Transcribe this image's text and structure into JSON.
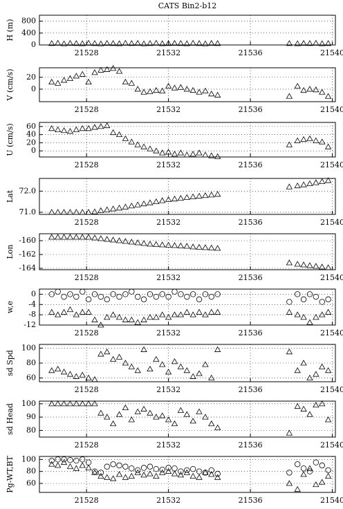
{
  "chart_data": [
    {
      "type": "scatter",
      "title": "CATS Bin2-b12",
      "ylabel": "H (m)",
      "xlim": [
        21525.7,
        21540.15
      ],
      "xticks": [
        21528,
        21532,
        21536,
        21540
      ],
      "ylim": [
        0,
        1000
      ],
      "yticks": [
        0,
        400,
        800
      ],
      "grid": true,
      "x": [
        21526.3,
        21526.6,
        21526.9,
        21527.2,
        21527.5,
        21527.8,
        21528.1,
        21528.4,
        21528.7,
        21529.0,
        21529.3,
        21529.6,
        21529.9,
        21530.2,
        21530.5,
        21530.8,
        21531.1,
        21531.4,
        21531.7,
        21532.0,
        21532.3,
        21532.6,
        21532.9,
        21533.2,
        21533.5,
        21533.8,
        21534.1,
        21534.4,
        21537.9,
        21538.3,
        21538.6,
        21538.9,
        21539.2,
        21539.5,
        21539.8
      ],
      "series": [
        {
          "marker": "triangle",
          "color": "#000000",
          "values": [
            50,
            60,
            40,
            55,
            50,
            45,
            60,
            50,
            40,
            55,
            50,
            45,
            60,
            50,
            55,
            40,
            50,
            60,
            45,
            50,
            55,
            50,
            45,
            60,
            50,
            40,
            55,
            50,
            50,
            45,
            55,
            50,
            60,
            45,
            50
          ]
        }
      ]
    },
    {
      "type": "scatter",
      "ylabel": "V (cm/s)",
      "xlim": [
        21525.7,
        21540.15
      ],
      "xticks": [
        21528,
        21532,
        21536,
        21540
      ],
      "ylim": [
        -21,
        36
      ],
      "yticks": [
        0,
        20
      ],
      "grid": true,
      "x": [
        21526.3,
        21526.6,
        21526.9,
        21527.2,
        21527.5,
        21527.8,
        21528.1,
        21528.4,
        21528.7,
        21529.0,
        21529.3,
        21529.6,
        21529.9,
        21530.2,
        21530.5,
        21530.8,
        21531.1,
        21531.4,
        21531.7,
        21532.0,
        21532.3,
        21532.6,
        21532.9,
        21533.2,
        21533.5,
        21533.8,
        21534.1,
        21534.4,
        21537.9,
        21538.3,
        21538.6,
        21538.9,
        21539.2,
        21539.5,
        21539.8
      ],
      "series": [
        {
          "marker": "triangle",
          "color": "#000000",
          "values": [
            12,
            10,
            15,
            18,
            22,
            25,
            12,
            28,
            32,
            33,
            35,
            30,
            12,
            10,
            0,
            -5,
            -4,
            -2,
            -3,
            5,
            2,
            3,
            0,
            -2,
            -5,
            -3,
            -8,
            -10,
            -12,
            5,
            -2,
            0,
            -1,
            -5,
            -12
          ]
        }
      ]
    },
    {
      "type": "scatter",
      "ylabel": "U (cm/s)",
      "xlim": [
        21525.7,
        21540.15
      ],
      "xticks": [
        21528,
        21532,
        21536,
        21540
      ],
      "ylim": [
        -15,
        70
      ],
      "yticks": [
        0,
        20,
        40,
        60
      ],
      "grid": true,
      "x": [
        21526.3,
        21526.6,
        21526.9,
        21527.2,
        21527.5,
        21527.8,
        21528.1,
        21528.4,
        21528.7,
        21529.0,
        21529.3,
        21529.6,
        21529.9,
        21530.2,
        21530.5,
        21530.8,
        21531.1,
        21531.4,
        21531.7,
        21532.0,
        21532.3,
        21532.6,
        21532.9,
        21533.2,
        21533.5,
        21533.8,
        21534.1,
        21534.4,
        21537.9,
        21538.3,
        21538.6,
        21538.9,
        21539.2,
        21539.5,
        21539.8
      ],
      "series": [
        {
          "marker": "triangle",
          "color": "#000000",
          "values": [
            55,
            52,
            50,
            48,
            52,
            55,
            55,
            58,
            60,
            62,
            45,
            40,
            30,
            22,
            15,
            10,
            5,
            0,
            -5,
            -3,
            -8,
            -5,
            -10,
            -8,
            -5,
            -10,
            -12,
            -14,
            15,
            25,
            28,
            30,
            25,
            22,
            10
          ]
        }
      ]
    },
    {
      "type": "scatter",
      "ylabel": "Lat",
      "xlim": [
        21525.7,
        21540.15
      ],
      "xticks": [
        21528,
        21532,
        21536,
        21540
      ],
      "ylim": [
        70.9,
        72.6
      ],
      "yticks": [
        {
          "value": 71,
          "label": "71.0"
        },
        {
          "value": 72,
          "label": "72.0"
        }
      ],
      "grid": true,
      "x": [
        21526.3,
        21526.6,
        21526.9,
        21527.2,
        21527.5,
        21527.8,
        21528.1,
        21528.4,
        21528.7,
        21529.0,
        21529.3,
        21529.6,
        21529.9,
        21530.2,
        21530.5,
        21530.8,
        21531.1,
        21531.4,
        21531.7,
        21532.0,
        21532.3,
        21532.6,
        21532.9,
        21533.2,
        21533.5,
        21533.8,
        21534.1,
        21534.4,
        21537.9,
        21538.3,
        21538.6,
        21538.9,
        21539.2,
        21539.5,
        21539.8
      ],
      "series": [
        {
          "marker": "triangle",
          "color": "#000000",
          "values": [
            71.0,
            71.0,
            71.0,
            71.0,
            71.0,
            71.0,
            71.0,
            71.02,
            71.08,
            71.12,
            71.16,
            71.2,
            71.25,
            71.3,
            71.35,
            71.4,
            71.45,
            71.5,
            71.55,
            71.6,
            71.63,
            71.66,
            71.7,
            71.73,
            71.76,
            71.79,
            71.82,
            71.85,
            72.2,
            72.25,
            72.3,
            72.35,
            72.4,
            72.45,
            72.5
          ]
        }
      ]
    },
    {
      "type": "scatter",
      "ylabel": "Lon",
      "xlim": [
        21525.7,
        21540.15
      ],
      "xticks": [
        21528,
        21532,
        21536,
        21540
      ],
      "ylim": [
        -164.2,
        -159
      ],
      "yticks": [
        -164,
        -162,
        -160
      ],
      "grid": true,
      "x": [
        21526.3,
        21526.6,
        21526.9,
        21527.2,
        21527.5,
        21527.8,
        21528.1,
        21528.4,
        21528.7,
        21529.0,
        21529.3,
        21529.6,
        21529.9,
        21530.2,
        21530.5,
        21530.8,
        21531.1,
        21531.4,
        21531.7,
        21532.0,
        21532.3,
        21532.6,
        21532.9,
        21533.2,
        21533.5,
        21533.8,
        21534.1,
        21534.4,
        21537.9,
        21538.3,
        21538.6,
        21538.9,
        21539.2,
        21539.5,
        21539.8
      ],
      "series": [
        {
          "marker": "triangle",
          "color": "#000000",
          "values": [
            -159.5,
            -159.5,
            -159.5,
            -159.5,
            -159.5,
            -159.5,
            -159.5,
            -159.6,
            -159.7,
            -159.8,
            -159.9,
            -160.0,
            -160.1,
            -160.2,
            -160.3,
            -160.4,
            -160.5,
            -160.55,
            -160.6,
            -160.65,
            -160.7,
            -160.75,
            -160.8,
            -160.9,
            -160.95,
            -161.0,
            -161.05,
            -161.1,
            -163.2,
            -163.4,
            -163.5,
            -163.6,
            -163.7,
            -163.8,
            -163.9
          ]
        }
      ]
    },
    {
      "type": "scatter",
      "ylabel": "w,e",
      "xlim": [
        21525.7,
        21540.15
      ],
      "xticks": [
        21528,
        21532,
        21536,
        21540
      ],
      "ylim": [
        -12,
        2
      ],
      "yticks": [
        -12,
        -8,
        -4,
        0
      ],
      "grid": true,
      "x": [
        21526.3,
        21526.6,
        21526.9,
        21527.2,
        21527.5,
        21527.8,
        21528.1,
        21528.4,
        21528.7,
        21529.0,
        21529.3,
        21529.6,
        21529.9,
        21530.2,
        21530.5,
        21530.8,
        21531.1,
        21531.4,
        21531.7,
        21532.0,
        21532.3,
        21532.6,
        21532.9,
        21533.2,
        21533.5,
        21533.8,
        21534.1,
        21534.4,
        21537.9,
        21538.3,
        21538.6,
        21538.9,
        21539.2,
        21539.5,
        21539.8
      ],
      "series": [
        {
          "marker": "circle",
          "color": "#000000",
          "values": [
            0,
            1,
            -1,
            0,
            -1,
            1,
            -2,
            0,
            -1,
            -2,
            0,
            -1,
            0,
            1,
            -1,
            -2,
            0,
            -1,
            0,
            -1,
            1,
            0,
            -1,
            0,
            -2,
            0,
            -1,
            0,
            -3,
            0,
            -2,
            0,
            -1,
            -3,
            -2
          ]
        },
        {
          "marker": "triangle",
          "color": "#000000",
          "values": [
            -7,
            -8,
            -7,
            -6,
            -8,
            -7,
            -7,
            -10,
            -12,
            -9,
            -8,
            -9,
            -10,
            -10,
            -11,
            -10,
            -9,
            -9,
            -8,
            -9,
            -8,
            -8,
            -7,
            -8,
            -7,
            -8,
            -7,
            -7,
            -7,
            -8,
            -9,
            -11,
            -9,
            -8,
            -7
          ]
        }
      ]
    },
    {
      "type": "scatter",
      "ylabel": "sd Spd",
      "xlim": [
        21525.7,
        21540.15
      ],
      "xticks": [
        21528,
        21532,
        21536,
        21540
      ],
      "ylim": [
        55,
        105
      ],
      "yticks": [
        60,
        80,
        100
      ],
      "grid": true,
      "x": [
        21526.3,
        21526.6,
        21526.9,
        21527.2,
        21527.5,
        21527.8,
        21528.1,
        21528.4,
        21528.7,
        21529.0,
        21529.3,
        21529.6,
        21529.9,
        21530.2,
        21530.5,
        21530.8,
        21531.1,
        21531.4,
        21531.7,
        21532.0,
        21532.3,
        21532.6,
        21532.9,
        21533.2,
        21533.5,
        21533.8,
        21534.1,
        21534.4,
        21537.9,
        21538.3,
        21538.6,
        21538.9,
        21539.2,
        21539.5,
        21539.8
      ],
      "series": [
        {
          "marker": "triangle",
          "color": "#000000",
          "values": [
            70,
            72,
            68,
            65,
            62,
            64,
            60,
            58,
            92,
            95,
            85,
            88,
            80,
            75,
            70,
            98,
            72,
            85,
            78,
            68,
            82,
            75,
            70,
            62,
            66,
            78,
            60,
            98,
            95,
            70,
            80,
            60,
            65,
            75,
            70
          ]
        }
      ]
    },
    {
      "type": "scatter",
      "ylabel": "sd Head",
      "xlim": [
        21525.7,
        21540.15
      ],
      "xticks": [
        21528,
        21532,
        21536,
        21540
      ],
      "ylim": [
        75,
        102
      ],
      "yticks": [
        80,
        90,
        100
      ],
      "grid": true,
      "x": [
        21526.3,
        21526.6,
        21526.9,
        21527.2,
        21527.5,
        21527.8,
        21528.1,
        21528.4,
        21528.7,
        21529.0,
        21529.3,
        21529.6,
        21529.9,
        21530.2,
        21530.5,
        21530.8,
        21531.1,
        21531.4,
        21531.7,
        21532.0,
        21532.3,
        21532.6,
        21532.9,
        21533.2,
        21533.5,
        21533.8,
        21534.1,
        21534.4,
        21537.9,
        21538.3,
        21538.6,
        21538.9,
        21539.2,
        21539.5,
        21539.8
      ],
      "series": [
        {
          "marker": "triangle",
          "color": "#000000",
          "values": [
            100,
            100,
            100,
            100,
            100,
            100,
            100,
            100,
            93,
            90,
            85,
            92,
            97,
            88,
            94,
            96,
            93,
            90,
            91,
            88,
            85,
            95,
            92,
            87,
            94,
            90,
            85,
            82,
            78,
            98,
            96,
            92,
            99,
            100,
            88
          ]
        }
      ]
    },
    {
      "type": "scatter",
      "ylabel": "Pg-WT,BT",
      "xlim": [
        21525.7,
        21540.15
      ],
      "xticks": [
        21528,
        21532,
        21536,
        21540
      ],
      "ylim": [
        45,
        105
      ],
      "yticks": [
        60,
        80,
        100
      ],
      "grid": true,
      "x": [
        21526.3,
        21526.6,
        21526.9,
        21527.2,
        21527.5,
        21527.8,
        21528.1,
        21528.4,
        21528.7,
        21529.0,
        21529.3,
        21529.6,
        21529.9,
        21530.2,
        21530.5,
        21530.8,
        21531.1,
        21531.4,
        21531.7,
        21532.0,
        21532.3,
        21532.6,
        21532.9,
        21533.2,
        21533.5,
        21533.8,
        21534.1,
        21534.4,
        21537.9,
        21538.3,
        21538.6,
        21538.9,
        21539.2,
        21539.5,
        21539.8
      ],
      "series": [
        {
          "marker": "circle",
          "color": "#000000",
          "values": [
            98,
            100,
            100,
            99,
            98,
            100,
            95,
            80,
            78,
            88,
            92,
            90,
            88,
            85,
            82,
            86,
            88,
            84,
            83,
            86,
            85,
            80,
            82,
            84,
            80,
            78,
            82,
            76,
            78,
            92,
            85,
            80,
            95,
            90,
            82
          ]
        },
        {
          "marker": "triangle",
          "color": "#000000",
          "values": [
            92,
            90,
            95,
            88,
            85,
            90,
            86,
            78,
            72,
            70,
            68,
            75,
            70,
            72,
            78,
            74,
            76,
            72,
            78,
            80,
            76,
            74,
            78,
            72,
            70,
            78,
            75,
            70,
            60,
            50,
            75,
            85,
            58,
            62,
            72
          ]
        }
      ]
    }
  ]
}
